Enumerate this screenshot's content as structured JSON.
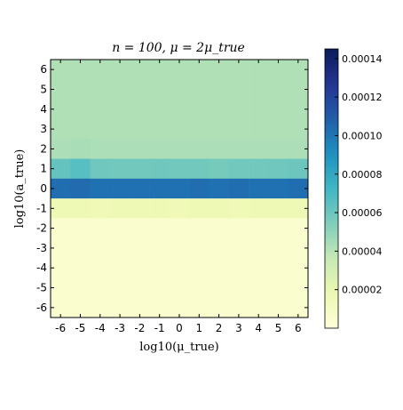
{
  "chart_data": {
    "type": "heatmap",
    "title": "n = 100,  μ = 2μ_true",
    "xlabel": "log10(μ_true)",
    "ylabel": "log10(a_true)",
    "x_categories": [
      "-6",
      "-5",
      "-4",
      "-3",
      "-2",
      "-1",
      "0",
      "1",
      "2",
      "3",
      "4",
      "5",
      "6"
    ],
    "y_categories": [
      "-6",
      "-5",
      "-4",
      "-3",
      "-2",
      "-1",
      "0",
      "1",
      "2",
      "3",
      "4",
      "5",
      "6"
    ],
    "colormap": "YlGnBu",
    "colorbar": {
      "min": 0.0,
      "max": 0.000145,
      "tick_values": [
        2e-05,
        4e-05,
        6e-05,
        8e-05,
        0.0001,
        0.00012,
        0.00014
      ],
      "tick_labels": [
        "0.00002",
        "0.00004",
        "0.00006",
        "0.00008",
        "0.00010",
        "0.00012",
        "0.00014"
      ]
    },
    "rows": [
      {
        "y": "6",
        "values": [
          4.2e-05,
          4.2e-05,
          4.2e-05,
          4.2e-05,
          4.2e-05,
          4.2e-05,
          4.2e-05,
          4.2e-05,
          4.2e-05,
          4.2e-05,
          4.2e-05,
          4.2e-05,
          4.2e-05
        ]
      },
      {
        "y": "5",
        "values": [
          4.2e-05,
          4.2e-05,
          4.2e-05,
          4.2e-05,
          4.2e-05,
          4.2e-05,
          4.2e-05,
          4.2e-05,
          4.2e-05,
          4.2e-05,
          4.2e-05,
          4.2e-05,
          4.2e-05
        ]
      },
      {
        "y": "4",
        "values": [
          4.2e-05,
          4.2e-05,
          4.2e-05,
          4.2e-05,
          4.2e-05,
          4.2e-05,
          4.2e-05,
          4.2e-05,
          4.2e-05,
          4.2e-05,
          4.2e-05,
          4.2e-05,
          4.2e-05
        ]
      },
      {
        "y": "3",
        "values": [
          4.2e-05,
          4.2e-05,
          4.2e-05,
          4.2e-05,
          4.2e-05,
          4.2e-05,
          4.2e-05,
          4.2e-05,
          4.2e-05,
          4.2e-05,
          4.2e-05,
          4.2e-05,
          4.2e-05
        ]
      },
      {
        "y": "2",
        "values": [
          4.3e-05,
          4.4e-05,
          4.3e-05,
          4.3e-05,
          4.3e-05,
          4.3e-05,
          4.3e-05,
          4.3e-05,
          4.3e-05,
          4.3e-05,
          4.3e-05,
          4.3e-05,
          4.3e-05
        ]
      },
      {
        "y": "1",
        "values": [
          6.2e-05,
          6.6e-05,
          5.9e-05,
          5.8e-05,
          5.8e-05,
          5.9e-05,
          5.8e-05,
          5.8e-05,
          5.7e-05,
          5.8e-05,
          5.8e-05,
          5.9e-05,
          6e-05
        ]
      },
      {
        "y": "0",
        "values": [
          0.000103,
          0.000104,
          0.000102,
          0.000102,
          0.000102,
          0.000102,
          0.000102,
          0.000103,
          0.000102,
          0.000103,
          0.000102,
          0.000102,
          0.000103
        ]
      },
      {
        "y": "-1",
        "values": [
          1.6e-05,
          1.6e-05,
          1.5e-05,
          1.6e-05,
          1.6e-05,
          1.6e-05,
          1.5e-05,
          1.6e-05,
          1.6e-05,
          1.5e-05,
          1.6e-05,
          1.6e-05,
          1.6e-05
        ]
      },
      {
        "y": "-2",
        "values": [
          5e-06,
          5e-06,
          5e-06,
          5e-06,
          5e-06,
          5e-06,
          5e-06,
          5e-06,
          5e-06,
          5e-06,
          5e-06,
          5e-06,
          5e-06
        ]
      },
      {
        "y": "-3",
        "values": [
          5e-06,
          5e-06,
          5e-06,
          5e-06,
          5e-06,
          5e-06,
          5e-06,
          5e-06,
          5e-06,
          5e-06,
          5e-06,
          5e-06,
          5e-06
        ]
      },
      {
        "y": "-4",
        "values": [
          5e-06,
          5e-06,
          5e-06,
          5e-06,
          5e-06,
          5e-06,
          5e-06,
          5e-06,
          5e-06,
          5e-06,
          5e-06,
          5e-06,
          5e-06
        ]
      },
      {
        "y": "-5",
        "values": [
          5e-06,
          5e-06,
          5e-06,
          5e-06,
          5e-06,
          5e-06,
          5e-06,
          5e-06,
          5e-06,
          5e-06,
          5e-06,
          5e-06,
          5e-06
        ]
      },
      {
        "y": "-6",
        "values": [
          5e-06,
          5e-06,
          5e-06,
          5e-06,
          5e-06,
          5e-06,
          5e-06,
          5e-06,
          5e-06,
          5e-06,
          5e-06,
          5e-06,
          5e-06
        ]
      }
    ]
  }
}
